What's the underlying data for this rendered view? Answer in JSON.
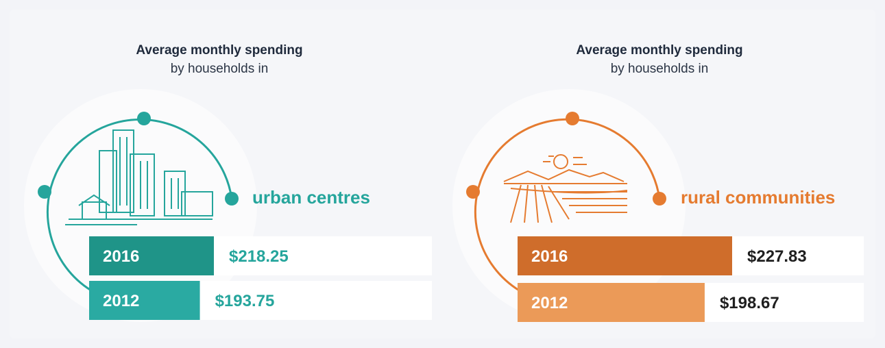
{
  "chart_data": [
    {
      "type": "bar",
      "title": "Average monthly spending",
      "subtitle": "by households in",
      "label": "urban centres",
      "label_color": "#25a59c",
      "value_color": "#25a59c",
      "categories": [
        "2016",
        "2012"
      ],
      "values": [
        218.25,
        193.75
      ],
      "value_labels": [
        "$218.25",
        "$193.75"
      ],
      "colors": [
        "#1f9488",
        "#2aaaa2"
      ]
    },
    {
      "type": "bar",
      "title": "Average monthly spending",
      "subtitle": "by households in",
      "label": "rural communities",
      "label_color": "#e57b30",
      "value_color": "#1f1f1f",
      "categories": [
        "2016",
        "2012"
      ],
      "values": [
        227.83,
        198.67
      ],
      "value_labels": [
        "$227.83",
        "$198.67"
      ],
      "colors": [
        "#cf6d2b",
        "#eb9a58"
      ]
    }
  ]
}
